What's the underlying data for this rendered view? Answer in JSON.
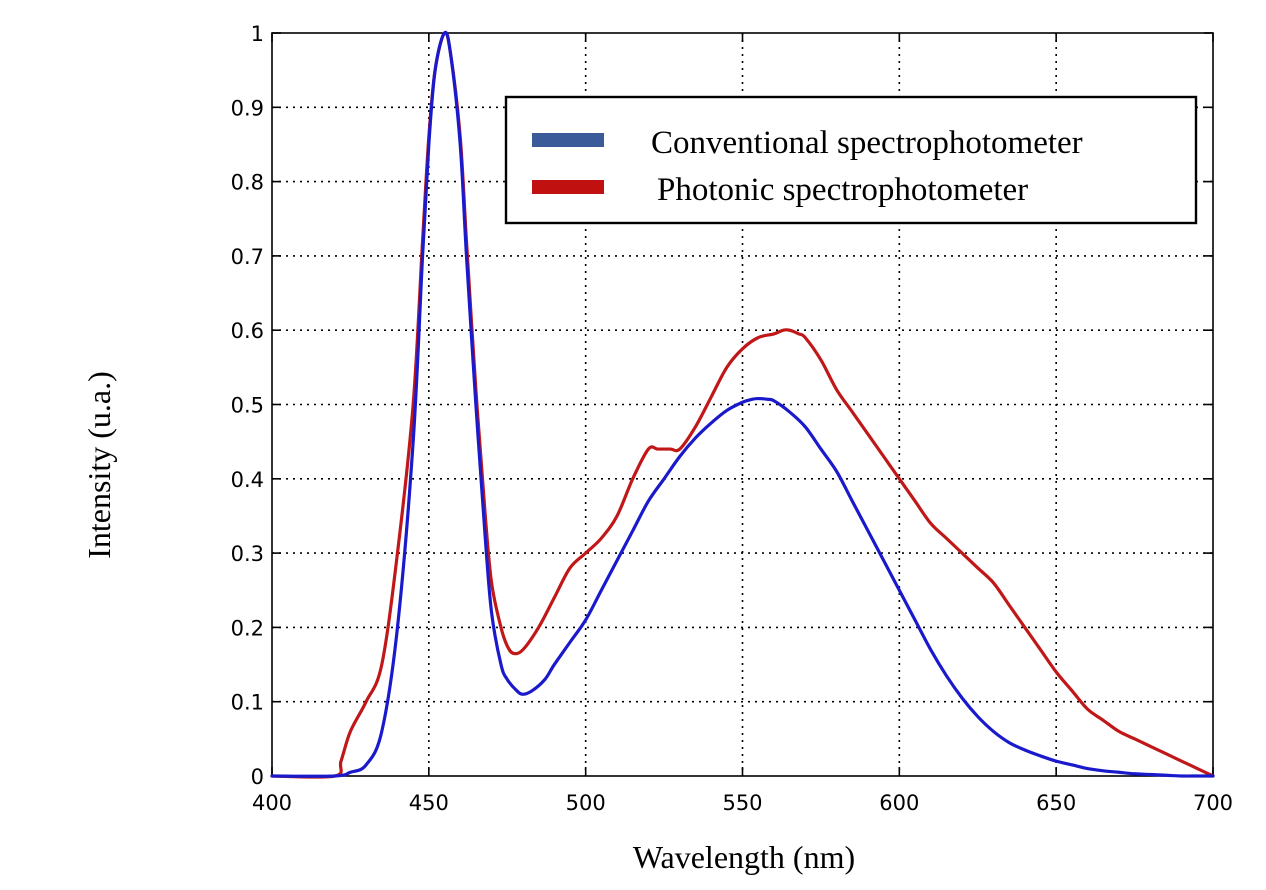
{
  "chart_data": {
    "type": "line",
    "title": "",
    "xlabel": "Wavelength (nm)",
    "ylabel": "Intensity (u.a.)",
    "xlim": [
      400,
      700
    ],
    "ylim": [
      0,
      1
    ],
    "grid": true,
    "legend_position": "top-right",
    "x_ticks": [
      400,
      450,
      500,
      550,
      600,
      650,
      700
    ],
    "x_tick_labels": [
      "400",
      "450",
      "500",
      "550",
      "600",
      "650",
      "700"
    ],
    "y_ticks": [
      0,
      0.1,
      0.2,
      0.3,
      0.4,
      0.5,
      0.6,
      0.7,
      0.8,
      0.9,
      1
    ],
    "y_tick_labels": [
      "0",
      "0.1",
      "0.2",
      "0.3",
      "0.4",
      "0.5",
      "0.6",
      "0.7",
      "0.8",
      "0.9",
      "1"
    ],
    "series": [
      {
        "name": "Conventional spectrophotometer",
        "color": "#1a1acc",
        "legend_color": "#3a5a9a",
        "x": [
          400,
          420,
          425,
          430,
          435,
          440,
          445,
          448,
          450,
          452,
          455,
          457,
          460,
          462,
          465,
          468,
          470,
          473,
          475,
          478,
          480,
          483,
          487,
          490,
          495,
          500,
          505,
          510,
          515,
          520,
          525,
          530,
          535,
          540,
          545,
          550,
          553,
          555,
          558,
          560,
          565,
          570,
          575,
          580,
          585,
          590,
          595,
          600,
          605,
          610,
          615,
          620,
          625,
          630,
          635,
          640,
          645,
          650,
          655,
          660,
          665,
          670,
          675,
          680,
          685,
          690,
          695,
          700
        ],
        "y": [
          0,
          0,
          0.005,
          0.015,
          0.06,
          0.2,
          0.45,
          0.7,
          0.85,
          0.95,
          1.0,
          0.97,
          0.85,
          0.7,
          0.5,
          0.32,
          0.22,
          0.15,
          0.13,
          0.115,
          0.11,
          0.115,
          0.13,
          0.15,
          0.18,
          0.21,
          0.25,
          0.29,
          0.33,
          0.37,
          0.4,
          0.43,
          0.455,
          0.475,
          0.492,
          0.503,
          0.507,
          0.508,
          0.507,
          0.505,
          0.49,
          0.47,
          0.44,
          0.41,
          0.37,
          0.33,
          0.29,
          0.25,
          0.21,
          0.17,
          0.135,
          0.105,
          0.08,
          0.06,
          0.045,
          0.035,
          0.027,
          0.02,
          0.015,
          0.01,
          0.007,
          0.005,
          0.003,
          0.002,
          0.001,
          0,
          0,
          0
        ]
      },
      {
        "name": "Photonic spectrophotometer",
        "color": "#c01818",
        "legend_color": "#c01010",
        "x": [
          400,
          420,
          422,
          425,
          430,
          435,
          440,
          445,
          448,
          450,
          452,
          455,
          457,
          460,
          462,
          465,
          468,
          470,
          473,
          475,
          477,
          480,
          485,
          490,
          495,
          500,
          505,
          510,
          515,
          520,
          523,
          527,
          530,
          535,
          540,
          545,
          550,
          555,
          560,
          563,
          565,
          568,
          570,
          575,
          580,
          585,
          590,
          595,
          600,
          605,
          610,
          615,
          620,
          625,
          630,
          635,
          640,
          645,
          650,
          655,
          660,
          665,
          670,
          675,
          680,
          685,
          690,
          695,
          700
        ],
        "y": [
          0,
          0,
          0.02,
          0.06,
          0.1,
          0.15,
          0.3,
          0.5,
          0.72,
          0.86,
          0.95,
          1.0,
          0.97,
          0.86,
          0.72,
          0.52,
          0.35,
          0.26,
          0.2,
          0.175,
          0.165,
          0.17,
          0.2,
          0.24,
          0.28,
          0.3,
          0.32,
          0.35,
          0.4,
          0.44,
          0.44,
          0.44,
          0.44,
          0.47,
          0.51,
          0.55,
          0.575,
          0.59,
          0.595,
          0.6,
          0.6,
          0.595,
          0.59,
          0.56,
          0.52,
          0.49,
          0.46,
          0.43,
          0.4,
          0.37,
          0.34,
          0.32,
          0.3,
          0.28,
          0.26,
          0.23,
          0.2,
          0.17,
          0.14,
          0.115,
          0.09,
          0.075,
          0.06,
          0.05,
          0.04,
          0.03,
          0.02,
          0.01,
          0
        ]
      }
    ]
  }
}
